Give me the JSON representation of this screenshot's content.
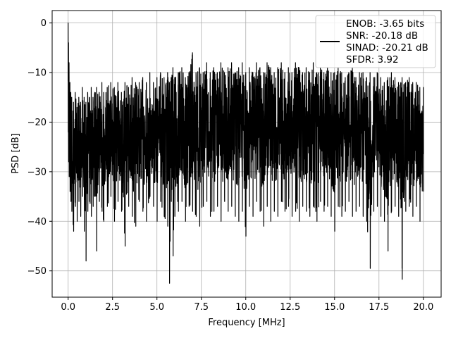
{
  "chart_data": {
    "type": "line",
    "title": "",
    "xlabel": "Frequency [MHz]",
    "ylabel": "PSD [dB]",
    "xlim": [
      -0.9,
      21.0
    ],
    "ylim": [
      -55.3,
      2.5
    ],
    "xticks": [
      0.0,
      2.5,
      5.0,
      7.5,
      10.0,
      12.5,
      15.0,
      17.5,
      20.0
    ],
    "xtick_labels": [
      "0.0",
      "2.5",
      "5.0",
      "7.5",
      "10.0",
      "12.5",
      "15.0",
      "17.5",
      "20.0"
    ],
    "yticks": [
      0,
      -10,
      -20,
      -30,
      -40,
      -50
    ],
    "ytick_labels": [
      "0",
      "−10",
      "−20",
      "−30",
      "−40",
      "−50"
    ],
    "grid": true,
    "legend_position": "top-right",
    "legend": [
      "ENOB: -3.65 bits",
      "SNR: -20.18 dB",
      "SINAD: -20.21 dB",
      "SFDR: 3.92"
    ],
    "line_color": "#000000",
    "series": [
      {
        "x": [
          0,
          0.02,
          0.05,
          0.1,
          0.15,
          0.2,
          0.3,
          0.4,
          0.5,
          0.6,
          0.7,
          0.8,
          0.9,
          1.0,
          1.1,
          1.2,
          1.3,
          1.4,
          1.5,
          1.6,
          1.75,
          1.9,
          2.0,
          2.2,
          2.4,
          2.6,
          2.8,
          3.0,
          3.2,
          3.4,
          3.6,
          3.8,
          4.0,
          4.2,
          4.4,
          4.6,
          4.8,
          5.0,
          5.2,
          5.4,
          5.6,
          5.7,
          5.8,
          5.9,
          6.0,
          6.2,
          6.4,
          6.6,
          6.8,
          7.0,
          7.2,
          7.4,
          7.6,
          7.8,
          8.0,
          8.2,
          8.4,
          8.6,
          8.8,
          9.0,
          9.2,
          9.4,
          9.6,
          9.8,
          10.0,
          10.2,
          10.4,
          10.6,
          10.8,
          11.0,
          11.2,
          11.4,
          11.6,
          11.8,
          12.0,
          12.2,
          12.4,
          12.6,
          12.8,
          13.0,
          13.2,
          13.4,
          13.6,
          13.8,
          14.0,
          14.2,
          14.4,
          14.6,
          14.8,
          15.0,
          15.2,
          15.4,
          15.6,
          15.8,
          16.0,
          16.2,
          16.4,
          16.6,
          16.8,
          17.0,
          17.2,
          17.4,
          17.6,
          17.8,
          18.0,
          18.2,
          18.4,
          18.6,
          18.8,
          19.0,
          19.2,
          19.4,
          19.6,
          19.8,
          20.0
        ],
        "y_max": [
          0,
          -4,
          -8,
          -12,
          -14,
          -15,
          -16,
          -14,
          -17,
          -15,
          -16,
          -13,
          -15,
          -16,
          -14,
          -15,
          -13,
          -15,
          -14,
          -13,
          -14,
          -12,
          -14,
          -13,
          -12,
          -13,
          -12,
          -14,
          -12,
          -13,
          -11,
          -12,
          -12,
          -11,
          -12,
          -10,
          -12,
          -11,
          -10,
          -11,
          -10,
          -12,
          -11,
          -9,
          -11,
          -10,
          -9,
          -11,
          -10,
          -6,
          -10,
          -9,
          -10,
          -8,
          -10,
          -9,
          -10,
          -8,
          -10,
          -9,
          -8,
          -10,
          -9,
          -8,
          -10,
          -9,
          -10,
          -8,
          -9,
          -10,
          -8,
          -9,
          -10,
          -9,
          -8,
          -10,
          -9,
          -10,
          -8,
          -9,
          -10,
          -9,
          -10,
          -8,
          -10,
          -9,
          -10,
          -9,
          -10,
          -10,
          -9,
          -10,
          -11,
          -10,
          -9,
          -11,
          -10,
          -10,
          -11,
          -10,
          -11,
          -10,
          -11,
          -12,
          -11,
          -10,
          -11,
          -12,
          -11,
          -12,
          -11,
          -12,
          -12,
          -13,
          -13
        ],
        "y_min": [
          -22,
          -28,
          -31,
          -34,
          -36,
          -38,
          -42,
          -37,
          -40,
          -36,
          -39,
          -35,
          -42,
          -48,
          -38,
          -36,
          -39,
          -37,
          -35,
          -46,
          -36,
          -38,
          -40,
          -37,
          -35,
          -40,
          -36,
          -38,
          -45,
          -37,
          -39,
          -41,
          -36,
          -38,
          -40,
          -35,
          -37,
          -40,
          -36,
          -39,
          -41,
          -52.5,
          -36,
          -47,
          -39,
          -38,
          -36,
          -40,
          -37,
          -38,
          -39,
          -41,
          -37,
          -36,
          -39,
          -38,
          -37,
          -40,
          -36,
          -38,
          -37,
          -39,
          -40,
          -38,
          -43,
          -37,
          -39,
          -36,
          -38,
          -41,
          -37,
          -40,
          -38,
          -39,
          -36,
          -38,
          -37,
          -39,
          -38,
          -40,
          -37,
          -38,
          -39,
          -37,
          -40,
          -36,
          -38,
          -37,
          -39,
          -42,
          -37,
          -39,
          -38,
          -36,
          -39,
          -38,
          -37,
          -39,
          -40,
          -49.5,
          -38,
          -37,
          -39,
          -40,
          -46,
          -38,
          -37,
          -39,
          -51.7,
          -38,
          -37,
          -39,
          -37,
          -40,
          -34
        ]
      }
    ]
  }
}
